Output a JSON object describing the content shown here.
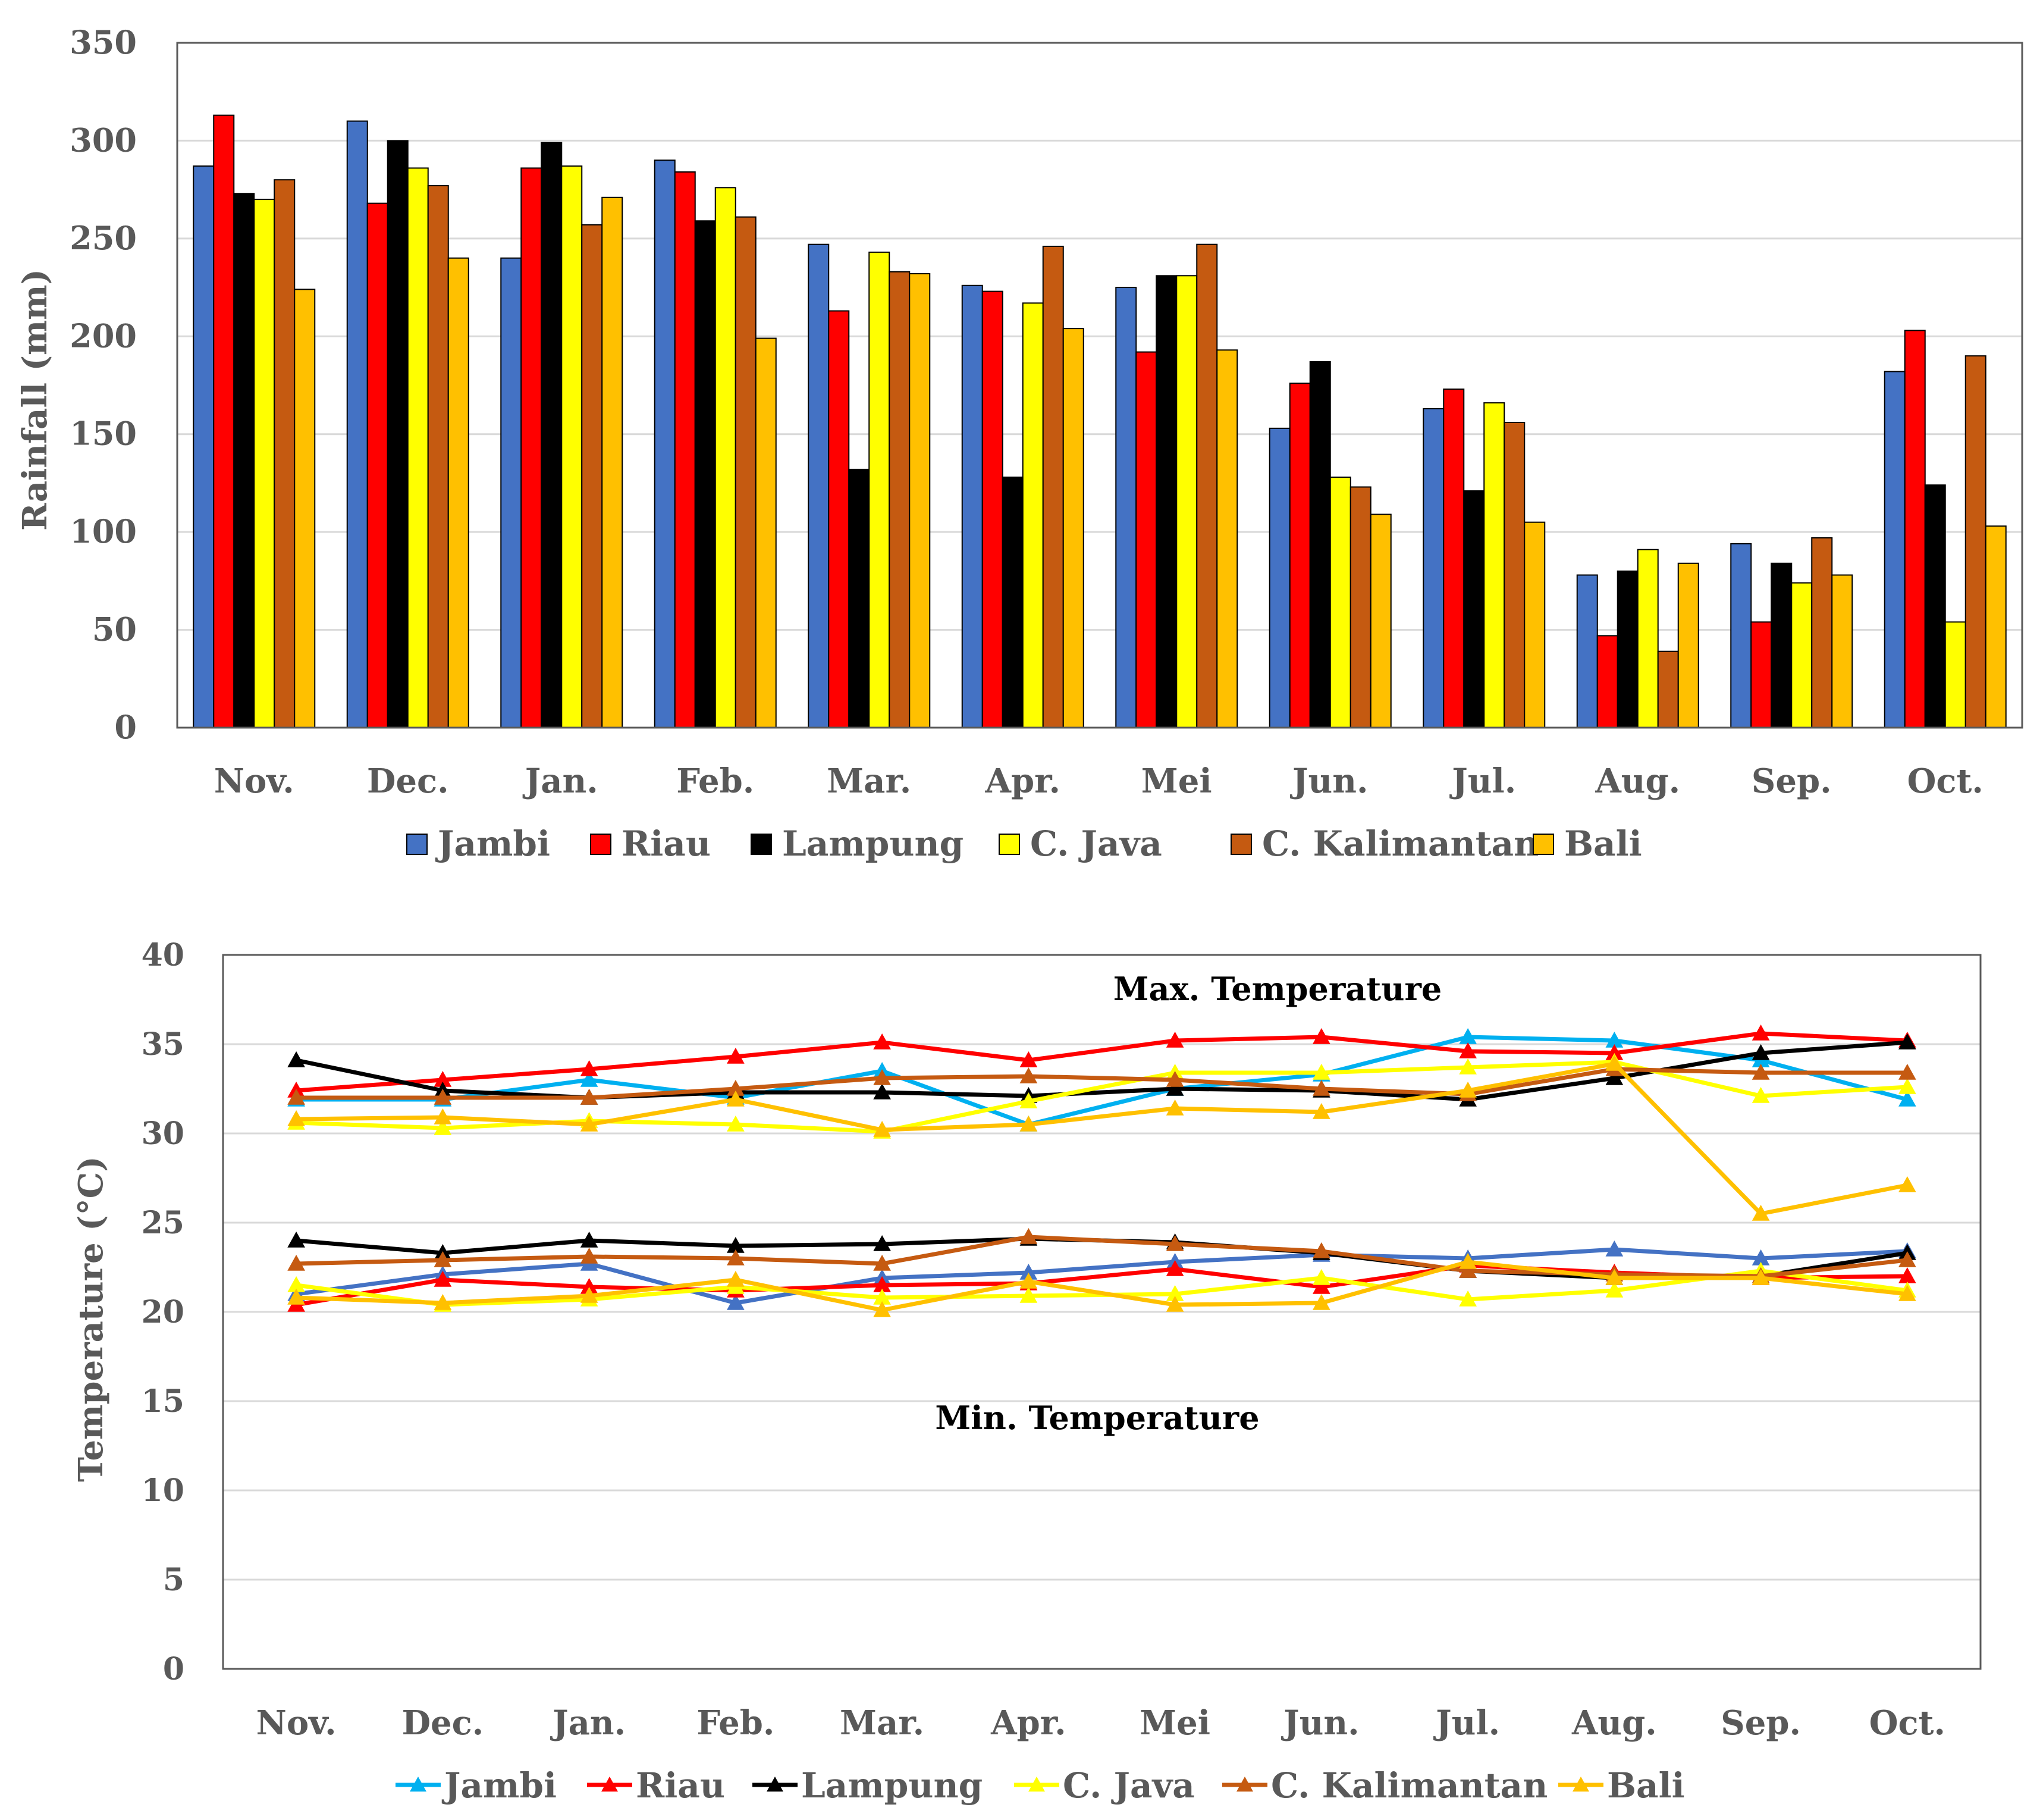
{
  "charts": {
    "rainfall": {
      "type": "bar",
      "ylabel": "Rainfall (mm)",
      "ylim": [
        0,
        350
      ],
      "yticks": [
        0,
        50,
        100,
        150,
        200,
        250,
        300,
        350
      ],
      "grid": true,
      "legend": "bottom",
      "categories": [
        "Nov.",
        "Dec.",
        "Jan.",
        "Feb.",
        "Mar.",
        "Apr.",
        "Mei",
        "Jun.",
        "Jul.",
        "Aug.",
        "Sep.",
        "Oct."
      ],
      "series": [
        {
          "name": "Jambi",
          "color": "#4472C4",
          "values": [
            287,
            310,
            240,
            290,
            247,
            226,
            225,
            153,
            163,
            78,
            94,
            182
          ]
        },
        {
          "name": "Riau",
          "color": "#FF0000",
          "values": [
            313,
            268,
            286,
            284,
            213,
            223,
            192,
            176,
            173,
            47,
            54,
            203
          ]
        },
        {
          "name": "Lampung",
          "color": "#000000",
          "values": [
            273,
            300,
            299,
            259,
            132,
            128,
            231,
            187,
            121,
            80,
            84,
            124
          ]
        },
        {
          "name": "C. Java",
          "color": "#FFFF00",
          "values": [
            270,
            286,
            287,
            276,
            243,
            217,
            231,
            128,
            166,
            91,
            74,
            54
          ]
        },
        {
          "name": "C. Kalimantan",
          "color": "#C55A11",
          "values": [
            280,
            277,
            257,
            261,
            233,
            246,
            247,
            123,
            156,
            39,
            97,
            190
          ]
        },
        {
          "name": "Bali",
          "color": "#FFC000",
          "values": [
            224,
            240,
            271,
            199,
            232,
            204,
            193,
            109,
            105,
            84,
            78,
            103
          ]
        }
      ]
    },
    "temperature": {
      "type": "line",
      "ylabel": "Temperature (°C)",
      "ylim": [
        0,
        40
      ],
      "yticks": [
        0,
        5,
        10,
        15,
        20,
        25,
        30,
        35,
        40
      ],
      "grid": true,
      "legend": "bottom",
      "annotations": {
        "max": "Max. Temperature",
        "min": "Min. Temperature"
      },
      "categories": [
        "Nov.",
        "Dec.",
        "Jan.",
        "Feb.",
        "Mar.",
        "Apr.",
        "Mei",
        "Jun.",
        "Jul.",
        "Aug.",
        "Sep.",
        "Oct."
      ],
      "legend_series": [
        {
          "name": "Jambi",
          "color": "#00B0F0"
        },
        {
          "name": "Riau",
          "color": "#FF0000"
        },
        {
          "name": "Lampung",
          "color": "#000000"
        },
        {
          "name": "C. Java",
          "color": "#FFFF00"
        },
        {
          "name": "C. Kalimantan",
          "color": "#C55A11"
        },
        {
          "name": "Bali",
          "color": "#FFC000"
        }
      ],
      "series": [
        {
          "name": "Jambi",
          "group": "max",
          "color": "#00B0F0",
          "values": [
            31.9,
            31.9,
            33.0,
            32.0,
            33.5,
            30.5,
            32.5,
            33.3,
            35.4,
            35.2,
            34.1,
            31.9
          ]
        },
        {
          "name": "Riau",
          "group": "max",
          "color": "#FF0000",
          "values": [
            32.4,
            33.0,
            33.6,
            34.3,
            35.1,
            34.1,
            35.2,
            35.4,
            34.6,
            34.5,
            35.6,
            35.2
          ]
        },
        {
          "name": "Lampung",
          "group": "max",
          "color": "#000000",
          "values": [
            34.1,
            32.4,
            32.0,
            32.3,
            32.3,
            32.1,
            32.5,
            32.4,
            31.9,
            33.1,
            34.5,
            35.1
          ]
        },
        {
          "name": "C. Java",
          "group": "max",
          "color": "#FFFF00",
          "values": [
            30.6,
            30.3,
            30.7,
            30.5,
            30.1,
            31.8,
            33.4,
            33.4,
            33.7,
            34.0,
            32.1,
            32.6
          ]
        },
        {
          "name": "C. Kalimantan",
          "group": "max",
          "color": "#C55A11",
          "values": [
            32.0,
            32.0,
            32.0,
            32.5,
            33.1,
            33.2,
            33.0,
            32.5,
            32.2,
            33.6,
            33.4,
            33.4
          ]
        },
        {
          "name": "Bali",
          "group": "max",
          "color": "#FFC000",
          "values": [
            30.8,
            30.9,
            30.5,
            31.9,
            30.2,
            30.5,
            31.4,
            31.2,
            32.4,
            33.9,
            25.5,
            27.1
          ]
        },
        {
          "name": "Jambi",
          "group": "min",
          "color": "#4472C4",
          "values": [
            21.0,
            22.1,
            22.7,
            20.5,
            21.9,
            22.2,
            22.8,
            23.2,
            23.0,
            23.5,
            23.0,
            23.4
          ]
        },
        {
          "name": "Riau",
          "group": "min",
          "color": "#FF0000",
          "values": [
            20.4,
            21.8,
            21.4,
            21.2,
            21.5,
            21.6,
            22.4,
            21.4,
            22.6,
            22.2,
            21.9,
            22.0
          ]
        },
        {
          "name": "Lampung",
          "group": "min",
          "color": "#000000",
          "values": [
            24.0,
            23.3,
            24.0,
            23.7,
            23.8,
            24.1,
            23.9,
            23.3,
            22.3,
            21.9,
            22.0,
            23.3
          ]
        },
        {
          "name": "C. Java",
          "group": "min",
          "color": "#FFFF00",
          "values": [
            21.5,
            20.4,
            20.7,
            21.4,
            20.8,
            20.9,
            21.0,
            21.9,
            20.7,
            21.2,
            22.3,
            21.2
          ]
        },
        {
          "name": "C. Kalimantan",
          "group": "min",
          "color": "#C55A11",
          "values": [
            22.7,
            22.9,
            23.1,
            23.0,
            22.7,
            24.2,
            23.8,
            23.4,
            22.3,
            22.1,
            22.0,
            22.9
          ]
        },
        {
          "name": "Bali",
          "group": "min",
          "color": "#FFC000",
          "values": [
            20.8,
            20.5,
            20.9,
            21.8,
            20.1,
            21.7,
            20.4,
            20.5,
            22.8,
            21.9,
            21.9,
            21.0
          ]
        }
      ]
    }
  }
}
